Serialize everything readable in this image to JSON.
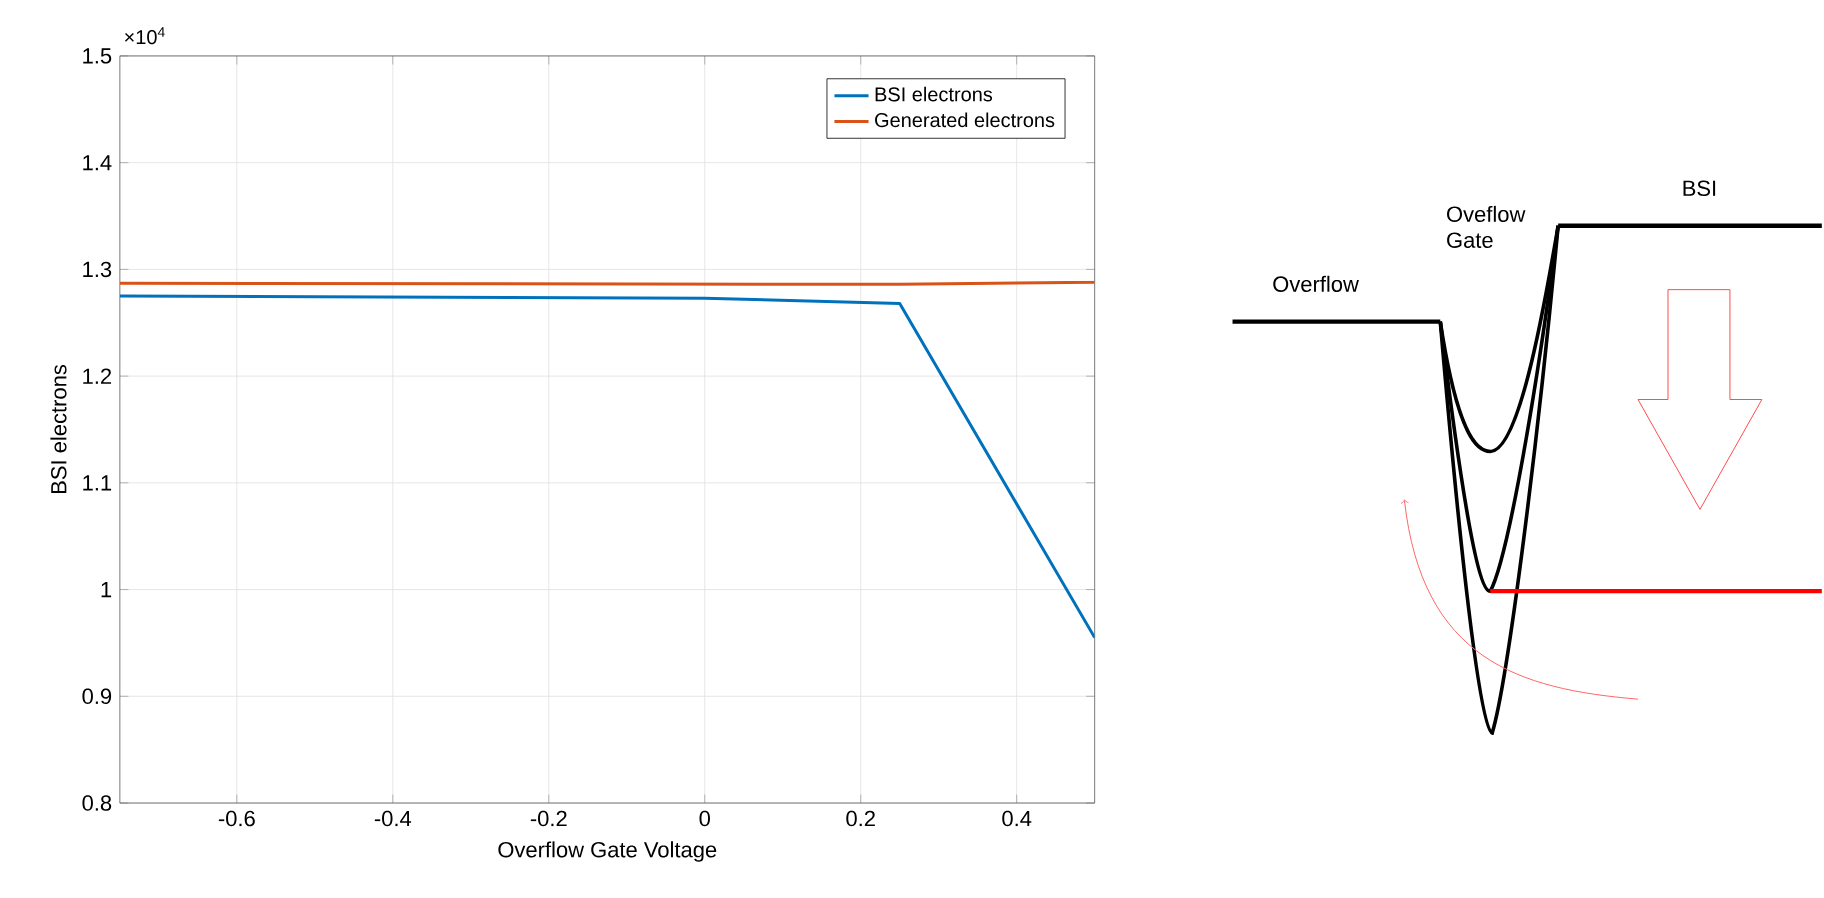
{
  "chart_data": {
    "type": "line",
    "xlabel": "Overflow Gate Voltage",
    "ylabel": "BSI electrons",
    "xlim": [
      -0.75,
      0.5
    ],
    "xticks": [
      -0.6,
      -0.4,
      -0.2,
      0,
      0.2,
      0.4
    ],
    "ylim": [
      0.8,
      1.5
    ],
    "yticks": [
      0.8,
      0.9,
      1,
      1.1,
      1.2,
      1.3,
      1.4,
      1.5
    ],
    "grid": true,
    "legend": "top right",
    "series": [
      {
        "name": "BSI electrons",
        "color": "#0072bd",
        "x": [
          -0.75,
          0,
          0.25,
          0.5
        ],
        "values": [
          1.275,
          1.273,
          1.268,
          0.955
        ]
      },
      {
        "name": "Generated electrons",
        "color": "#d95319",
        "x": [
          -0.75,
          0.25,
          0.5
        ],
        "values": [
          1.287,
          1.286,
          1.288
        ]
      }
    ],
    "annotations": [
      "×10$^{4}$",
      "Overflow",
      "Oveflow Gate",
      "BSI"
    ]
  }
}
